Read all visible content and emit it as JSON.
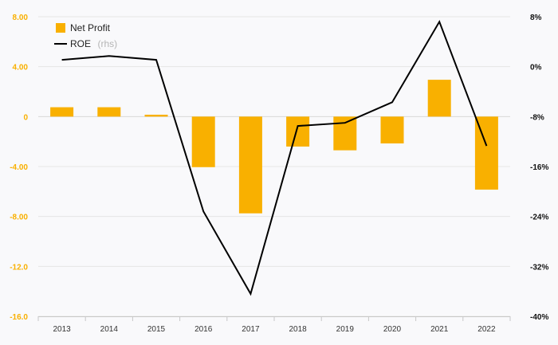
{
  "chart_data": {
    "type": "bar+line",
    "categories": [
      "2013",
      "2014",
      "2015",
      "2016",
      "2017",
      "2018",
      "2019",
      "2020",
      "2021",
      "2022"
    ],
    "series": [
      {
        "name": "Net Profit",
        "type": "bar",
        "axis": "left",
        "color": "#f9b000",
        "values": [
          0.75,
          0.75,
          0.15,
          -4.05,
          -7.75,
          -2.4,
          -2.7,
          -2.15,
          2.95,
          -5.85
        ]
      },
      {
        "name": "ROE",
        "name_suffix": "(rhs)",
        "type": "line",
        "axis": "right",
        "color": "#000000",
        "values": [
          1.1,
          1.7,
          1.1,
          -23.2,
          -36.4,
          -9.5,
          -9.0,
          -5.7,
          7.2,
          -12.7
        ]
      }
    ],
    "left_axis": {
      "ylim": [
        -16,
        8
      ],
      "ticks": [
        8,
        4,
        0,
        -4,
        -8,
        -12,
        -16
      ],
      "tick_labels": [
        "8.00",
        "4.00",
        "0",
        "-4.00",
        "-8.00",
        "-12.0",
        "-16.0"
      ],
      "color": "#f9b000"
    },
    "right_axis": {
      "ylim": [
        -40,
        8
      ],
      "ticks": [
        8,
        0,
        -8,
        -16,
        -24,
        -32,
        -40
      ],
      "tick_labels": [
        "8%",
        "0%",
        "-8%",
        "-16%",
        "-24%",
        "-32%",
        "-40%"
      ]
    },
    "legend_position": "top-left",
    "grid": true
  }
}
